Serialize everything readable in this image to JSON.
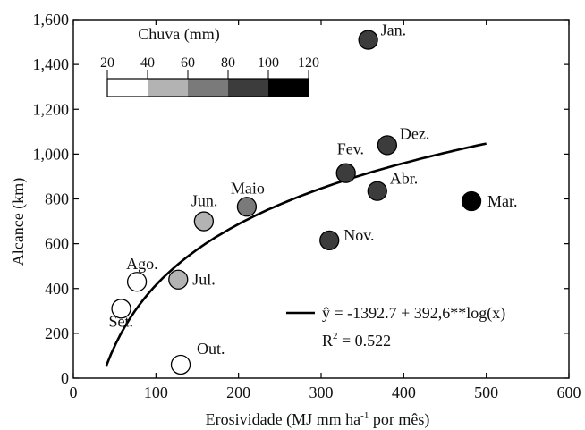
{
  "chart_data": {
    "type": "scatter",
    "xlabel_main": "Erosividade (MJ mm ha",
    "xlabel_sup": "-1",
    "xlabel_tail": " por mês)",
    "ylabel": "Alcance (km)",
    "xlim": [
      0,
      600
    ],
    "ylim": [
      0,
      1600
    ],
    "x_ticks": [
      0,
      100,
      200,
      300,
      400,
      500,
      600
    ],
    "y_ticks": [
      0,
      200,
      400,
      600,
      800,
      1000,
      1200,
      1400,
      1600
    ],
    "x_tick_labels": [
      "0",
      "100",
      "200",
      "300",
      "400",
      "500",
      "600"
    ],
    "y_tick_labels": [
      "0",
      "200",
      "400",
      "600",
      "800",
      "1,000",
      "1,200",
      "1,400",
      "1,600"
    ],
    "grid": false,
    "points": [
      {
        "label": "Jan.",
        "x": 357,
        "y": 1510,
        "rain": 95
      },
      {
        "label": "Fev.",
        "x": 330,
        "y": 915,
        "rain": 95
      },
      {
        "label": "Mar.",
        "x": 482,
        "y": 790,
        "rain": 115
      },
      {
        "label": "Abr.",
        "x": 368,
        "y": 835,
        "rain": 95
      },
      {
        "label": "Maio",
        "x": 210,
        "y": 765,
        "rain": 65
      },
      {
        "label": "Jun.",
        "x": 158,
        "y": 700,
        "rain": 45
      },
      {
        "label": "Jul.",
        "x": 127,
        "y": 440,
        "rain": 45
      },
      {
        "label": "Ago.",
        "x": 77,
        "y": 430,
        "rain": 25
      },
      {
        "label": "Set.",
        "x": 58,
        "y": 310,
        "rain": 25
      },
      {
        "label": "Out.",
        "x": 130,
        "y": 60,
        "rain": 25
      },
      {
        "label": "Nov.",
        "x": 310,
        "y": 615,
        "rain": 95
      },
      {
        "label": "Dez.",
        "x": 380,
        "y": 1040,
        "rain": 95
      }
    ],
    "fit": {
      "label_lhs": "ŷ = -1392.7 + 392,6**log(x)",
      "r2_prefix": "R",
      "r2_sup": "2",
      "r2_value": " = 0.522",
      "intercept": -1392.7,
      "slope": 392.6,
      "x_range": [
        40,
        500
      ]
    },
    "colorbar": {
      "title": "Chuva (mm)",
      "ticks": [
        "20",
        "40",
        "60",
        "80",
        "100",
        "120"
      ],
      "bins": [
        {
          "from": 20,
          "to": 40,
          "color": "#ffffff"
        },
        {
          "from": 40,
          "to": 60,
          "color": "#b3b3b3"
        },
        {
          "from": 60,
          "to": 80,
          "color": "#7a7a7a"
        },
        {
          "from": 80,
          "to": 100,
          "color": "#3c3c3c"
        },
        {
          "from": 100,
          "to": 120,
          "color": "#000000"
        }
      ]
    }
  }
}
